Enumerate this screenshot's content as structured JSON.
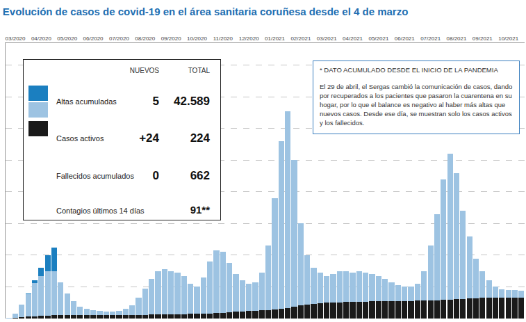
{
  "chart_data": {
    "type": "bar",
    "title": "Evolución de casos de covid-19 en el área sanitaria coruñesa desde el 4 de marzo",
    "categories": [
      null,
      "03/2020",
      null,
      null,
      null,
      "04/2020",
      null,
      null,
      null,
      "05/2020",
      null,
      null,
      null,
      "06/2020",
      null,
      null,
      null,
      "07/2020",
      null,
      null,
      null,
      "08/2020",
      null,
      null,
      null,
      "09/2020",
      null,
      null,
      null,
      "10/2020",
      null,
      null,
      null,
      "11/2020",
      null,
      null,
      null,
      "12/2020",
      null,
      null,
      null,
      "01/2021",
      null,
      null,
      null,
      "02/2021",
      null,
      null,
      null,
      "03/2021",
      null,
      null,
      null,
      "04/2021",
      null,
      null,
      null,
      "05/2021",
      null,
      null,
      null,
      "06/2021",
      null,
      null,
      null,
      "07/2021",
      null,
      null,
      null,
      "08/2021",
      null,
      null,
      null,
      "09/2021",
      null,
      null,
      null,
      "10/2021",
      null,
      null
    ],
    "series": [
      {
        "name": "Altas acumuladas",
        "color": "#1b7fc0",
        "values": [
          null,
          null,
          null,
          20,
          80,
          250,
          500,
          750,
          null,
          null,
          null,
          null,
          null,
          null,
          null,
          null,
          null,
          null,
          null,
          null,
          null,
          null,
          null,
          null,
          null,
          null,
          null,
          null,
          null,
          null,
          null,
          null,
          null,
          null,
          null,
          null,
          null,
          null,
          null,
          null,
          null,
          null,
          null,
          null,
          null,
          null,
          null,
          null,
          null,
          null,
          null,
          null,
          null,
          null,
          null,
          null,
          null,
          null,
          null,
          null,
          null,
          null,
          null,
          null,
          null,
          null,
          null,
          null,
          null,
          null,
          null,
          null,
          null,
          null,
          null,
          null,
          null,
          null,
          null,
          null
        ]
      },
      {
        "name": "Casos activos",
        "color": "#9dc3e2",
        "values": [
          25,
          130,
          410,
          720,
          1045,
          1265,
          1405,
          1400,
          1045,
          692,
          440,
          268,
          187,
          146,
          126,
          115,
          115,
          134,
          184,
          303,
          532,
          830,
          1128,
          1375,
          1422,
          1368,
          1314,
          1210,
          955,
          850,
          1145,
          1640,
          1980,
          1915,
          1550,
          1185,
          975,
          865,
          905,
          1195,
          2035,
          3515,
          5290,
          6210,
          4620,
          2580,
          1550,
          1130,
          965,
          855,
          895,
          985,
          980,
          925,
          970,
          915,
          860,
          805,
          700,
          598,
          495,
          442,
          440,
          538,
          935,
          1730,
          2725,
          3815,
          4605,
          3990,
          2775,
          1962,
          1255,
          850,
          546,
          343,
          261,
          240,
          229,
          224
        ]
      },
      {
        "name": "Fallecidos acumulados",
        "color": "#1a1a1a",
        "values": [
          5,
          20,
          40,
          60,
          75,
          85,
          95,
          100,
          105,
          108,
          110,
          112,
          113,
          114,
          114,
          115,
          115,
          116,
          116,
          117,
          118,
          120,
          122,
          125,
          128,
          132,
          136,
          140,
          145,
          150,
          155,
          160,
          170,
          185,
          200,
          215,
          225,
          235,
          245,
          255,
          265,
          285,
          310,
          340,
          380,
          420,
          450,
          470,
          485,
          495,
          505,
          515,
          520,
          525,
          530,
          535,
          540,
          545,
          550,
          552,
          555,
          558,
          560,
          562,
          565,
          570,
          575,
          585,
          595,
          610,
          625,
          638,
          645,
          650,
          654,
          657,
          659,
          660,
          661,
          662
        ]
      }
    ],
    "stacked": true,
    "ylim": [
      0,
      8700
    ],
    "yticks": [
      0,
      1000,
      2000,
      3000,
      4000,
      5000,
      6000,
      7000,
      8000
    ],
    "grid": true,
    "tick_labels": "x"
  },
  "summary": {
    "headers": [
      "NUEVOS",
      "TOTAL"
    ],
    "rows": [
      [
        "5",
        "42.589"
      ],
      [
        "+24",
        "224"
      ],
      [
        "0",
        "662"
      ]
    ],
    "extra": {
      "label": "Contagios últimos 14 días",
      "total": "91**"
    }
  },
  "note": {
    "title": "* DATO ACUMULADO DESDE EL INICIO DE LA PANDEMIA",
    "text": "El 29 de abril, el Sergas cambió la comunicación de casos, dando por recuperados a los pacientes que pasaron la cuarentena en su hogar, por lo que el balance es negativo al haber más altas que nuevos casos. Desde ese día, se muestran solo los casos activos y los fallecidos."
  }
}
